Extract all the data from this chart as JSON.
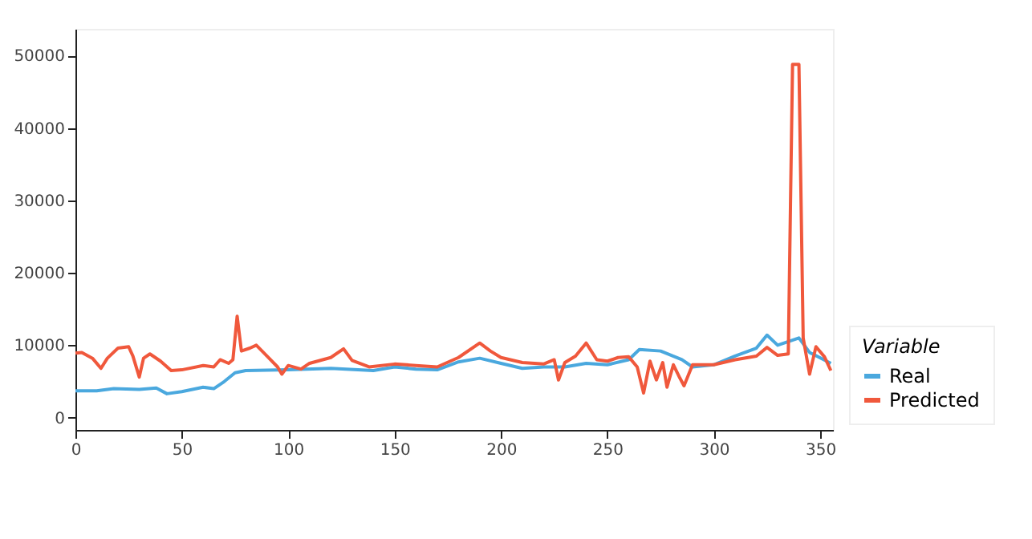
{
  "chart_data": {
    "type": "line",
    "legend_title": "Variable",
    "legend": "bottom right",
    "grid": false,
    "xlim": [
      0,
      356
    ],
    "xticks": [
      0,
      50,
      100,
      150,
      200,
      250,
      300,
      350
    ],
    "ylim": [
      -1700,
      53700
    ],
    "yticks": [
      0,
      10000,
      20000,
      30000,
      40000,
      50000
    ],
    "series": [
      {
        "name": "Real",
        "color": "#4aa8de",
        "x": [
          0,
          10,
          18,
          30,
          38,
          43,
          50,
          60,
          65,
          70,
          75,
          80,
          100,
          120,
          140,
          150,
          160,
          170,
          180,
          190,
          200,
          210,
          220,
          230,
          240,
          250,
          260,
          265,
          275,
          285,
          290,
          300,
          310,
          320,
          325,
          330,
          340,
          345,
          355
        ],
        "values": [
          3700,
          3700,
          4000,
          3900,
          4100,
          3300,
          3600,
          4200,
          4000,
          5000,
          6200,
          6500,
          6600,
          6800,
          6500,
          7000,
          6700,
          6600,
          7700,
          8200,
          7500,
          6800,
          7000,
          7000,
          7500,
          7300,
          8000,
          9400,
          9200,
          8000,
          7000,
          7300,
          8500,
          9600,
          11400,
          10000,
          11000,
          9000,
          7500
        ]
      },
      {
        "name": "Predicted",
        "color": "#f0583c",
        "x": [
          0,
          3,
          8,
          12,
          15,
          20,
          25,
          27,
          30,
          32,
          35,
          40,
          45,
          50,
          60,
          65,
          68,
          72,
          74,
          76,
          78,
          82,
          85,
          90,
          95,
          97,
          100,
          106,
          110,
          120,
          126,
          130,
          138,
          150,
          160,
          170,
          180,
          190,
          195,
          200,
          210,
          220,
          225,
          227,
          230,
          235,
          240,
          245,
          250,
          255,
          260,
          264,
          267,
          270,
          273,
          276,
          278,
          281,
          284,
          286,
          290,
          300,
          310,
          320,
          325,
          330,
          335,
          337,
          340,
          342,
          345,
          348,
          352,
          355
        ],
        "values": [
          8900,
          9000,
          8200,
          6800,
          8200,
          9600,
          9800,
          8500,
          5600,
          8200,
          8800,
          7800,
          6500,
          6600,
          7200,
          7000,
          8000,
          7500,
          8000,
          14000,
          9200,
          9600,
          10000,
          8500,
          7000,
          6000,
          7200,
          6700,
          7500,
          8300,
          9500,
          7900,
          7000,
          7400,
          7200,
          7000,
          8300,
          10300,
          9200,
          8300,
          7600,
          7400,
          8000,
          5200,
          7600,
          8500,
          10300,
          8000,
          7800,
          8300,
          8400,
          7000,
          3400,
          7800,
          5200,
          7600,
          4200,
          7300,
          5500,
          4400,
          7300,
          7300,
          8000,
          8500,
          9700,
          8600,
          8800,
          48800,
          48800,
          11000,
          6000,
          9800,
          8400,
          6500
        ]
      }
    ]
  }
}
